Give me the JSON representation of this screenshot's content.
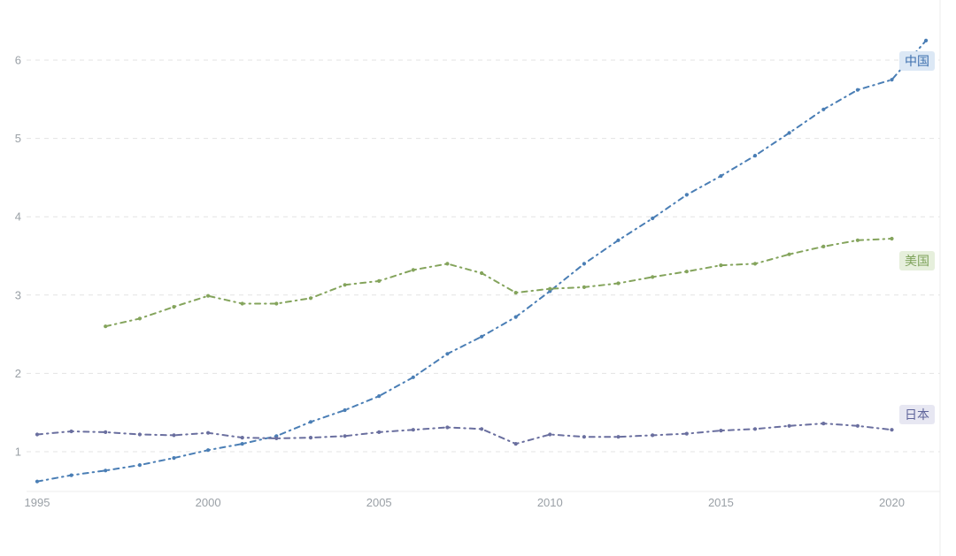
{
  "chart_data": {
    "type": "line",
    "title": "",
    "xlabel": "",
    "ylabel": "",
    "xlim": [
      1995,
      2021
    ],
    "ylim": [
      0.5,
      6.45
    ],
    "x_ticks": [
      1995,
      2000,
      2005,
      2010,
      2015,
      2020
    ],
    "y_ticks": [
      1,
      2,
      3,
      4,
      5,
      6
    ],
    "grid": "horizontal dashed",
    "legend_position": "right-end-labels",
    "line_style": "dash-dot with point markers",
    "series": [
      {
        "name": "中国",
        "color": "#4a7eb5",
        "label_bg": "#dce8f5",
        "label_color": "#3d6fae",
        "start_year": 1995,
        "values": [
          0.62,
          0.7,
          0.76,
          0.83,
          0.92,
          1.02,
          1.1,
          1.2,
          1.38,
          1.53,
          1.71,
          1.95,
          2.25,
          2.47,
          2.72,
          3.05,
          3.4,
          3.7,
          3.98,
          4.28,
          4.52,
          4.78,
          5.07,
          5.37,
          5.62,
          5.75,
          6.25
        ]
      },
      {
        "name": "美国",
        "color": "#84a45c",
        "label_bg": "#e6efdc",
        "label_color": "#7da25a",
        "start_year": 1997,
        "values": [
          2.6,
          2.7,
          2.85,
          2.99,
          2.89,
          2.89,
          2.96,
          3.13,
          3.18,
          3.32,
          3.4,
          3.28,
          3.03,
          3.08,
          3.1,
          3.15,
          3.23,
          3.3,
          3.38,
          3.4,
          3.52,
          3.62,
          3.7,
          3.72
        ]
      },
      {
        "name": "日本",
        "color": "#6a6f9f",
        "label_bg": "#e7e7f2",
        "label_color": "#5f659b",
        "start_year": 1995,
        "values": [
          1.22,
          1.26,
          1.25,
          1.22,
          1.21,
          1.24,
          1.18,
          1.17,
          1.18,
          1.2,
          1.25,
          1.28,
          1.31,
          1.29,
          1.1,
          1.22,
          1.19,
          1.19,
          1.21,
          1.23,
          1.27,
          1.29,
          1.33,
          1.36,
          1.33,
          1.28
        ]
      }
    ],
    "style_colors": {
      "grid": "#e3e3e3",
      "axis": "#ececec",
      "tick_text": "#9aa0a6"
    }
  }
}
